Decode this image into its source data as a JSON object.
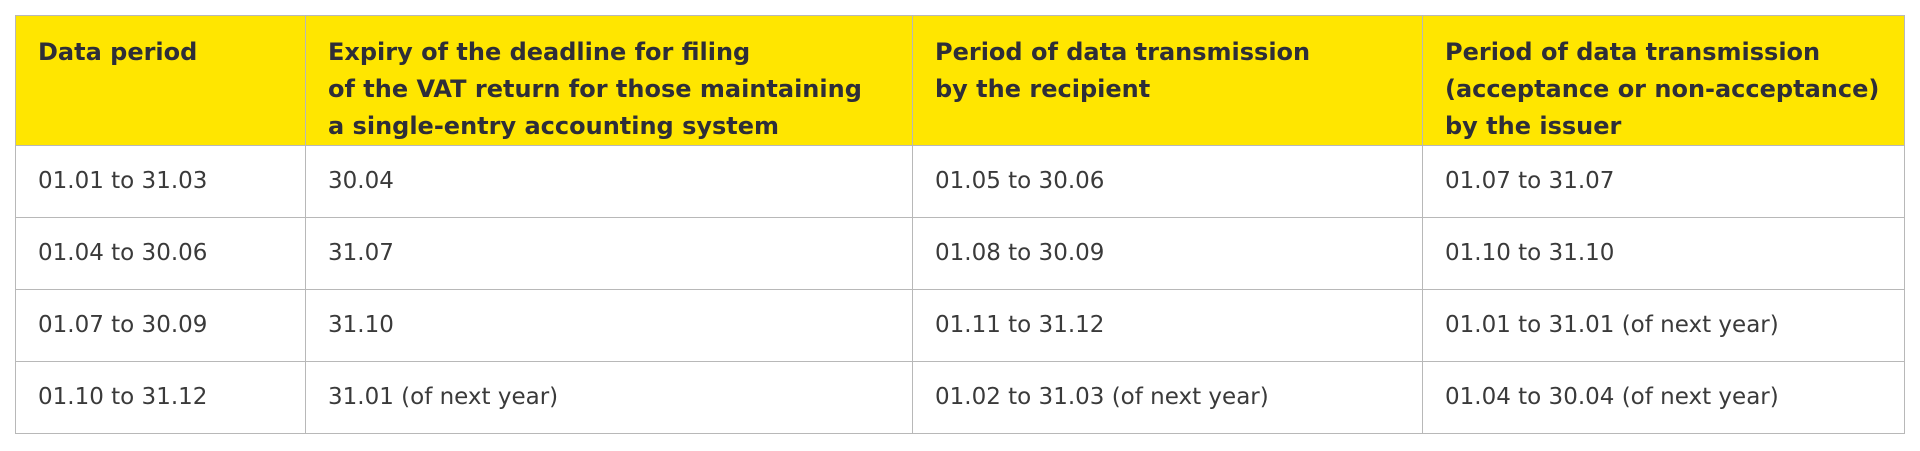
{
  "table": {
    "header": [
      [
        "Data period"
      ],
      [
        "Expiry of the deadline for filing",
        "of the VAT return for those maintaining",
        "a single-entry accounting system"
      ],
      [
        "Period of data transmission",
        "by the recipient"
      ],
      [
        "Period of data transmission",
        "(acceptance or non-acceptance)",
        "by the issuer"
      ]
    ],
    "rows": [
      [
        "01.01 to 31.03",
        "30.04",
        "01.05 to 30.06",
        "01.07 to 31.07"
      ],
      [
        "01.04 to 30.06",
        "31.07",
        "01.08 to 30.09",
        "01.10 to 31.10"
      ],
      [
        "01.07 to 30.09",
        "31.10",
        "01.11 to 31.12",
        "01.01 to 31.01 (of next year)"
      ],
      [
        "01.10 to 31.12",
        "31.01 (of next year)",
        "01.02 to 31.03 (of next year)",
        "01.04 to 30.04 (of next year)"
      ]
    ]
  }
}
